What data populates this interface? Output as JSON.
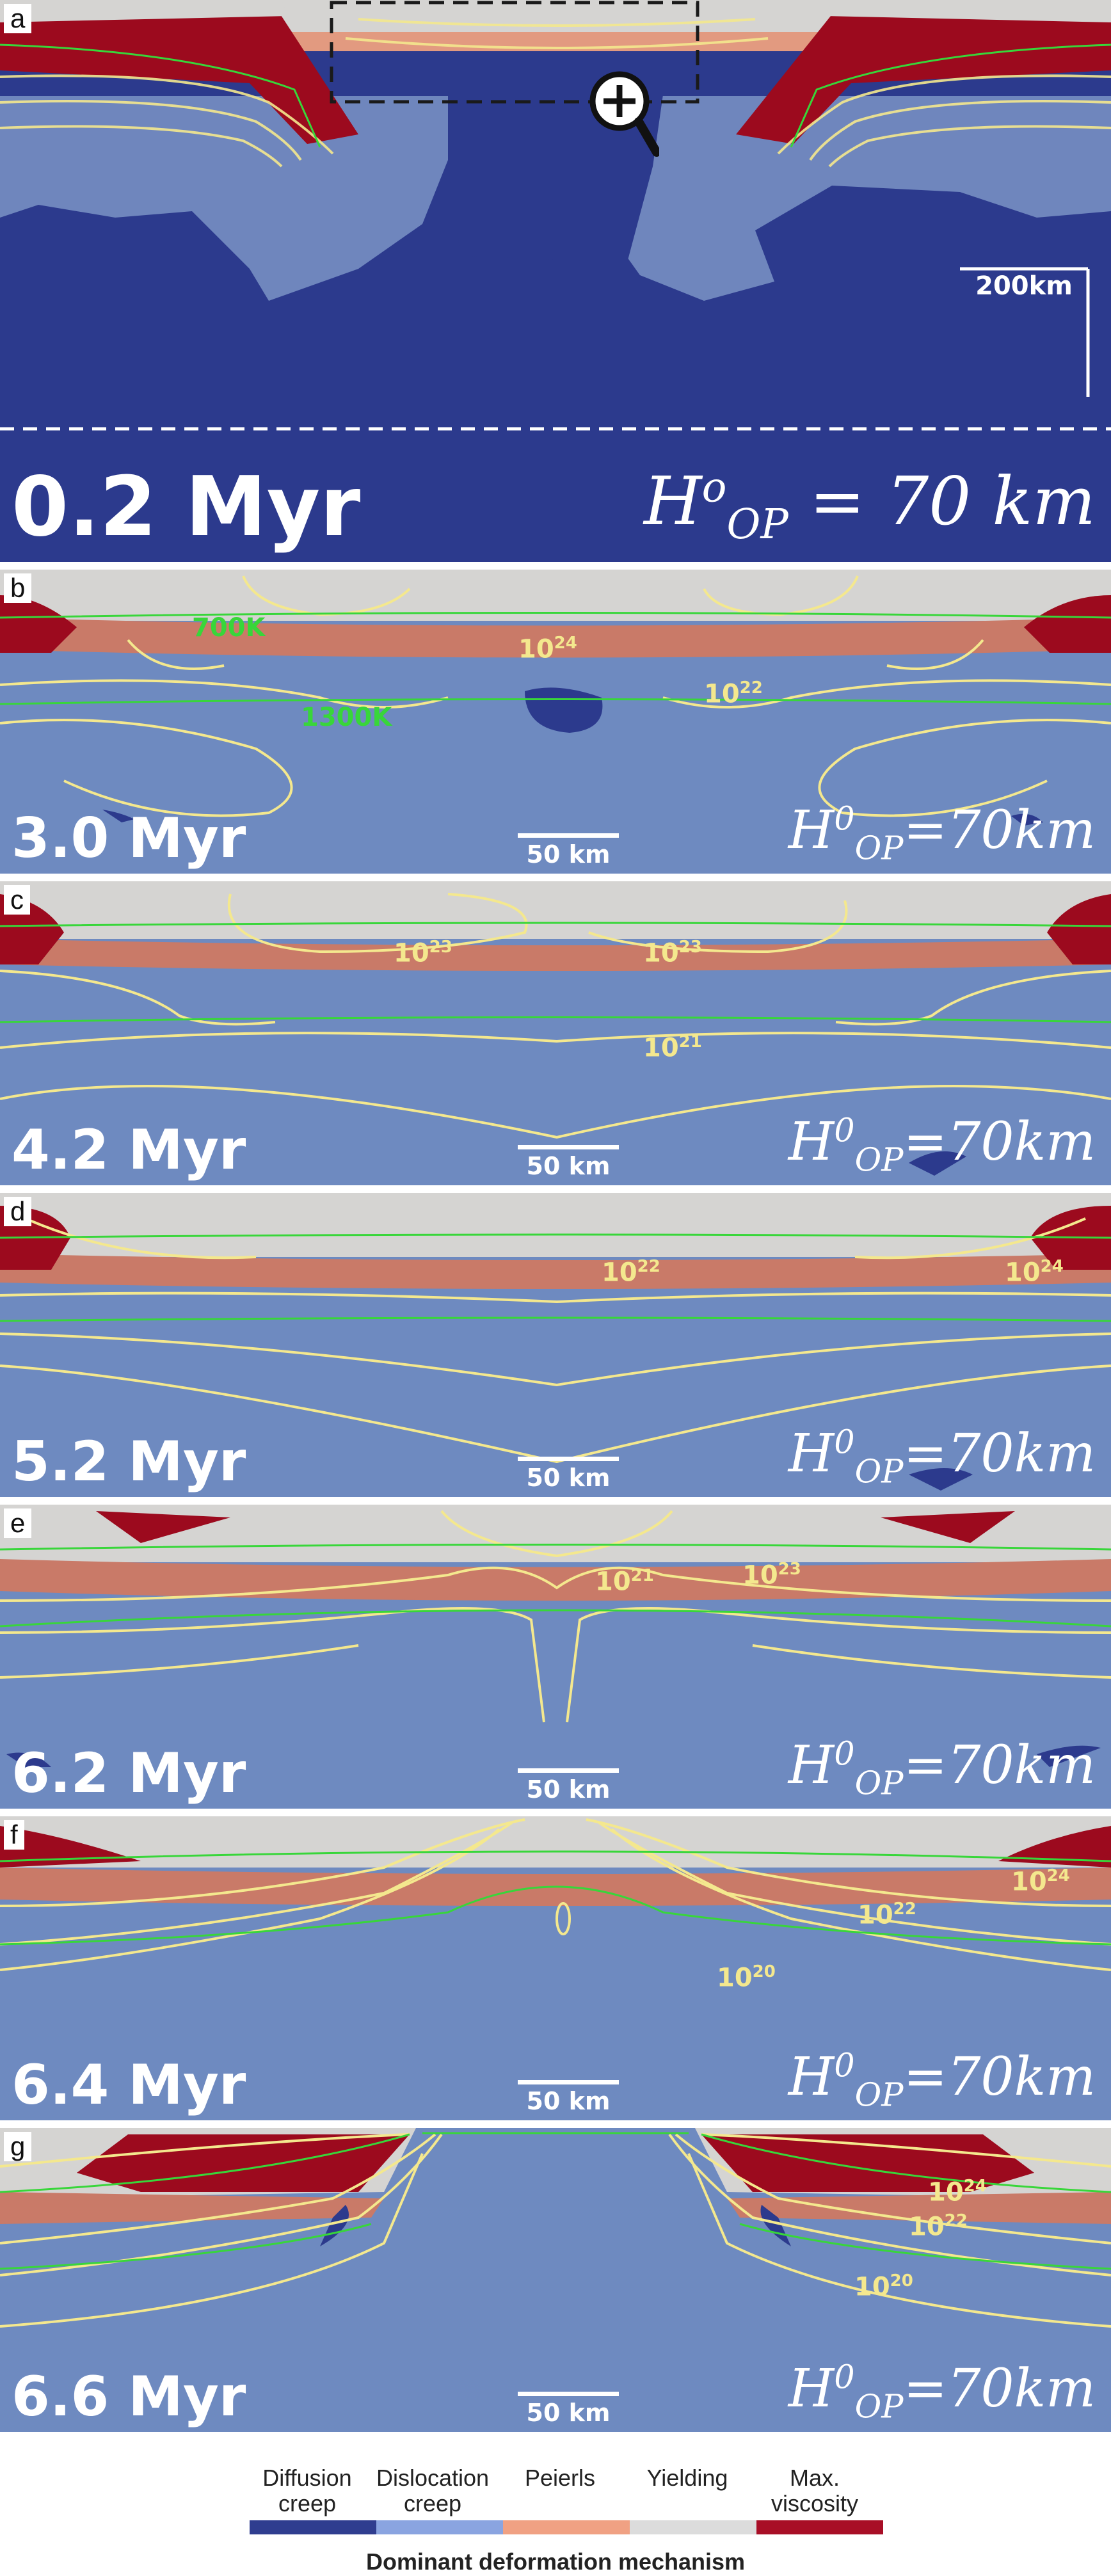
{
  "panels": [
    {
      "letter": "a",
      "time": "0.2 Myr",
      "scale": "200km",
      "hop_sup": "o",
      "hop_main": "H",
      "hop_sub": "OP",
      "hop_rest": " = 70 km",
      "zoom_icon": "magnifier-plus-icon"
    },
    {
      "letter": "b",
      "time": "3.0 Myr",
      "scale": "50 km",
      "hop_main": "H",
      "hop_sup": "0",
      "hop_sub": "OP",
      "hop_rest": "=70km",
      "temps": [
        "700K",
        "1300K"
      ],
      "isos": [
        "10",
        "24",
        "10",
        "22"
      ]
    },
    {
      "letter": "c",
      "time": "4.2 Myr",
      "scale": "50 km",
      "hop_main": "H",
      "hop_sup": "0",
      "hop_sub": "OP",
      "hop_rest": "=70km",
      "isos": [
        "10",
        "23",
        "10",
        "23",
        "10",
        "21"
      ]
    },
    {
      "letter": "d",
      "time": "5.2 Myr",
      "scale": "50 km",
      "hop_main": "H",
      "hop_sup": "0",
      "hop_sub": "OP",
      "hop_rest": "=70km",
      "isos": [
        "10",
        "22",
        "10",
        "24"
      ]
    },
    {
      "letter": "e",
      "time": "6.2 Myr",
      "scale": "50 km",
      "hop_main": "H",
      "hop_sup": "0",
      "hop_sub": "OP",
      "hop_rest": "=70km",
      "isos": [
        "10",
        "21",
        "10",
        "23"
      ]
    },
    {
      "letter": "f",
      "time": "6.4 Myr",
      "scale": "50 km",
      "hop_main": "H",
      "hop_sup": "0",
      "hop_sub": "OP",
      "hop_rest": "=70km",
      "isos": [
        "10",
        "24",
        "10",
        "22",
        "10",
        "20"
      ]
    },
    {
      "letter": "g",
      "time": "6.6 Myr",
      "scale": "50 km",
      "hop_main": "H",
      "hop_sup": "0",
      "hop_sub": "OP",
      "hop_rest": "=70km",
      "isos": [
        "10",
        "24",
        "10",
        "22",
        "10",
        "20"
      ]
    }
  ],
  "colors": {
    "diffusion": "#2f3d8f",
    "dislocation": "#6e8ac0",
    "peierls": "#e8957a",
    "yielding": "#d8d8d8",
    "max_viscosity": "#9c0a1e",
    "isoviscosity": "#f4e88e",
    "isotherm": "#38d63a"
  },
  "legend": {
    "title": "Dominant deformation mechanism",
    "items": [
      {
        "label_1": "Diffusion",
        "label_2": "creep"
      },
      {
        "label_1": "Dislocation",
        "label_2": "creep"
      },
      {
        "label_1": "Peierls",
        "label_2": ""
      },
      {
        "label_1": "Yielding",
        "label_2": ""
      },
      {
        "label_1": "Max.",
        "label_2": "viscosity"
      }
    ]
  }
}
